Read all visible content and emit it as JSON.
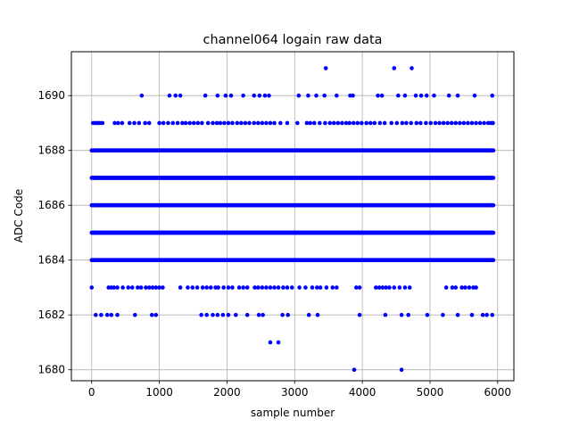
{
  "chart_data": {
    "type": "scatter",
    "title": "channel064 logain raw data",
    "xlabel": "sample number",
    "ylabel": "ADC Code",
    "xlim": [
      -300,
      6240
    ],
    "ylim": [
      1679.6,
      1691.6
    ],
    "xticks": [
      0,
      1000,
      2000,
      3000,
      4000,
      5000,
      6000
    ],
    "yticks": [
      1680,
      1682,
      1684,
      1686,
      1688,
      1690
    ],
    "grid": true,
    "marker_color": "#0000ff",
    "dense_levels": [
      {
        "code": 1684,
        "x_range": [
          0,
          5936
        ]
      },
      {
        "code": 1685,
        "x_range": [
          0,
          5936
        ]
      },
      {
        "code": 1686,
        "x_range": [
          0,
          5936
        ]
      },
      {
        "code": 1687,
        "x_range": [
          0,
          5936
        ]
      },
      {
        "code": 1688,
        "x_range": [
          0,
          5936
        ]
      }
    ],
    "sparse_points": [
      {
        "y": 1691,
        "x": [
          3460,
          4470,
          4730
        ]
      },
      {
        "y": 1690,
        "x": [
          740,
          1150,
          1240,
          1310,
          1680,
          1860,
          1980,
          2060,
          2240,
          2400,
          2480,
          2560,
          2620,
          3060,
          3200,
          3320,
          3440,
          3620,
          3820,
          3860,
          4230,
          4290,
          4530,
          4630,
          4790,
          4870,
          4950,
          5060,
          5280,
          5410,
          5660,
          5920
        ]
      },
      {
        "y": 1689,
        "x": [
          20,
          60,
          90,
          120,
          160,
          340,
          390,
          450,
          560,
          630,
          700,
          790,
          850,
          1000,
          1060,
          1130,
          1200,
          1270,
          1340,
          1390,
          1450,
          1510,
          1570,
          1630,
          1720,
          1790,
          1850,
          1900,
          1960,
          2020,
          2080,
          2150,
          2210,
          2270,
          2330,
          2400,
          2460,
          2520,
          2580,
          2640,
          2700,
          2790,
          2890,
          3040,
          3180,
          3230,
          3290,
          3370,
          3450,
          3520,
          3580,
          3640,
          3700,
          3760,
          3810,
          3870,
          3930,
          3990,
          4060,
          4120,
          4180,
          4260,
          4330,
          4430,
          4510,
          4590,
          4650,
          4720,
          4800,
          4860,
          4940,
          5010,
          5080,
          5140,
          5200,
          5260,
          5320,
          5380,
          5440,
          5500,
          5560,
          5620,
          5680,
          5740,
          5800,
          5860,
          5900,
          5930
        ]
      },
      {
        "y": 1683,
        "x": [
          0,
          250,
          290,
          330,
          380,
          460,
          540,
          600,
          680,
          730,
          800,
          850,
          900,
          950,
          1000,
          1050,
          1310,
          1420,
          1490,
          1560,
          1640,
          1700,
          1760,
          1830,
          1870,
          1950,
          2020,
          2080,
          2180,
          2240,
          2300,
          2410,
          2460,
          2520,
          2580,
          2640,
          2700,
          2760,
          2830,
          2890,
          2960,
          3070,
          3160,
          3260,
          3330,
          3380,
          3470,
          3560,
          3620,
          3910,
          3960,
          4200,
          4250,
          4300,
          4350,
          4400,
          4470,
          4550,
          4630,
          4700,
          5240,
          5330,
          5380,
          5470,
          5520,
          5580,
          5640,
          5680
        ]
      },
      {
        "y": 1682,
        "x": [
          60,
          140,
          230,
          290,
          380,
          640,
          890,
          950,
          1620,
          1700,
          1790,
          1860,
          1940,
          2020,
          2130,
          2300,
          2470,
          2530,
          2820,
          2900,
          3210,
          3340,
          3960,
          4340,
          4580,
          4680,
          4960,
          5190,
          5410,
          5620,
          5780,
          5840,
          5920
        ]
      },
      {
        "y": 1681,
        "x": [
          2640,
          2760
        ]
      },
      {
        "y": 1680,
        "x": [
          3880,
          4580
        ]
      }
    ]
  }
}
